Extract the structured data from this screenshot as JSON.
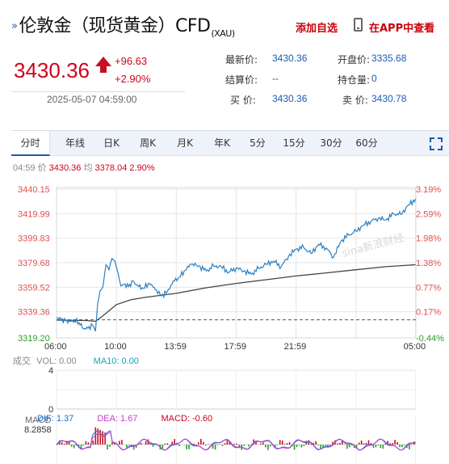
{
  "header": {
    "title": "伦敦金（现货黄金）CFD",
    "title_suffix": "(XAU)",
    "add_watchlist": "添加自选",
    "app_view": "在APP中查看"
  },
  "quote": {
    "price": "3430.36",
    "change": "+96.63",
    "change_pct": "+2.90%",
    "datetime": "2025-05-07 04:59:00",
    "fields": {
      "latest_label": "最新价:",
      "latest_value": "3430.36",
      "open_label": "开盘价:",
      "open_value": "3335.68",
      "settle_label": "结算价:",
      "settle_value": "--",
      "oi_label": "持仓量:",
      "oi_value": "0",
      "bid_label": "买  价:",
      "bid_value": "3430.36",
      "ask_label": "卖  价:",
      "ask_value": "3430.78"
    }
  },
  "tabs": [
    "分时",
    "年线",
    "日K",
    "周K",
    "月K",
    "年K",
    "5分",
    "15分",
    "30分",
    "60分"
  ],
  "active_tab": 0,
  "readout": {
    "time": "04:59",
    "price_label": "价",
    "price": "3430.36",
    "avg_label": "均",
    "avg": "3378.04",
    "pct": "2.90%"
  },
  "volume": {
    "label": "成交",
    "vol_text": "VOL: 0.00",
    "ma10_text": "MA10: 0.00",
    "ticks": [
      "4",
      "0"
    ]
  },
  "macd": {
    "label": "MACD",
    "max": "8.2858",
    "dif_text": "DIF: 1.37",
    "dea_text": "DEA: 1.67",
    "macd_text": "MACD: -0.60"
  },
  "colors": {
    "up": "#d0021b",
    "down": "#2a9d2a",
    "price_line": "#2b7fc2",
    "avg_line": "#444444",
    "dif": "#2b7fc2",
    "dea": "#c040d0"
  },
  "chart_data": {
    "type": "line",
    "y_left_ticks": [
      "3440.15",
      "3419.99",
      "3399.83",
      "3379.68",
      "3359.52",
      "3339.36",
      "3319.20"
    ],
    "y_right_ticks": [
      "3.19%",
      "2.59%",
      "1.98%",
      "1.38%",
      "0.77%",
      "0.17%",
      "-0.44%"
    ],
    "x_ticks": [
      "06:00",
      "10:00",
      "13:59",
      "17:59",
      "21:59",
      "05:00"
    ],
    "ylim": [
      3319.2,
      3440.15
    ],
    "prev_close": 3333.73,
    "watermark": "sina新浪财经",
    "series": [
      {
        "name": "价",
        "x_hours": [
          0,
          0.3,
          0.6,
          0.9,
          1.2,
          1.5,
          1.8,
          2.1,
          2.4,
          2.6,
          2.75,
          2.9,
          3.1,
          3.3,
          3.5,
          3.7,
          3.9,
          4.1,
          4.3,
          4.5,
          4.8,
          5.1,
          5.4,
          5.8,
          6.2,
          6.6,
          7,
          7.4,
          7.8,
          8.2,
          8.6,
          9,
          9.5,
          10,
          10.5,
          11,
          11.5,
          12,
          12.5,
          13,
          13.5,
          14,
          14.5,
          15,
          15.5,
          16,
          16.5,
          17,
          17.5,
          18,
          18.5,
          19,
          19.5,
          20,
          20.5,
          21,
          21.5,
          22,
          22.5,
          23,
          23.5,
          23.98
        ],
        "y": [
          3335.5,
          3334.0,
          3333.0,
          3332.5,
          3333.0,
          3331.5,
          3326.5,
          3327.0,
          3329.5,
          3324.5,
          3347.0,
          3357.0,
          3360.5,
          3378.0,
          3374.0,
          3383.0,
          3381.0,
          3372.0,
          3361.0,
          3362.5,
          3360.5,
          3365.0,
          3361.5,
          3359.0,
          3363.0,
          3358.0,
          3353.0,
          3356.5,
          3365.0,
          3368.0,
          3373.5,
          3378.5,
          3377.0,
          3373.0,
          3377.0,
          3376.5,
          3372.0,
          3375.5,
          3373.0,
          3370.5,
          3375.0,
          3378.5,
          3381.0,
          3376.5,
          3385.0,
          3390.5,
          3392.0,
          3387.0,
          3394.5,
          3391.5,
          3384.0,
          3397.0,
          3402.0,
          3405.0,
          3410.0,
          3413.0,
          3415.5,
          3414.0,
          3419.0,
          3418.5,
          3426.0,
          3431.0
        ]
      },
      {
        "name": "均",
        "x_hours": [
          0,
          2,
          2.6,
          3,
          3.5,
          4,
          5,
          6,
          8,
          10,
          12,
          14,
          16,
          18,
          20,
          22,
          23.98
        ],
        "y": [
          3333.5,
          3333.2,
          3332.5,
          3336.0,
          3341.0,
          3346.0,
          3350.0,
          3352.0,
          3355.0,
          3359.5,
          3363.0,
          3366.0,
          3369.0,
          3371.5,
          3374.0,
          3376.5,
          3378.04
        ]
      }
    ]
  }
}
